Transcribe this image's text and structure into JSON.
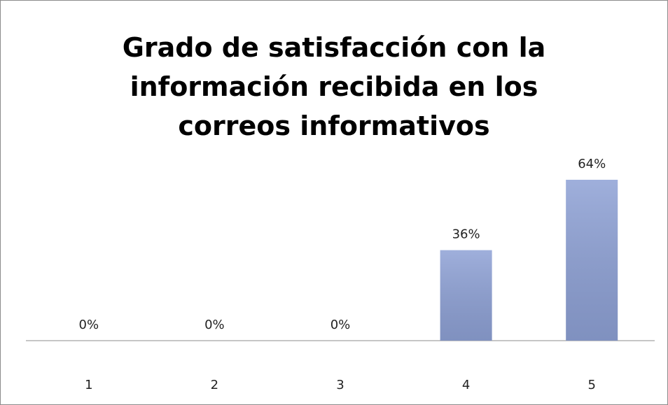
{
  "chart_data": {
    "type": "bar",
    "title": "Grado de satisfacción con la información recibida en los correos informativos",
    "categories": [
      "1",
      "2",
      "3",
      "4",
      "5"
    ],
    "values": [
      0,
      0,
      0,
      36,
      64
    ],
    "value_labels": [
      "0%",
      "0%",
      "0%",
      "36%",
      "64%"
    ],
    "color": "#8ea1d5"
  }
}
